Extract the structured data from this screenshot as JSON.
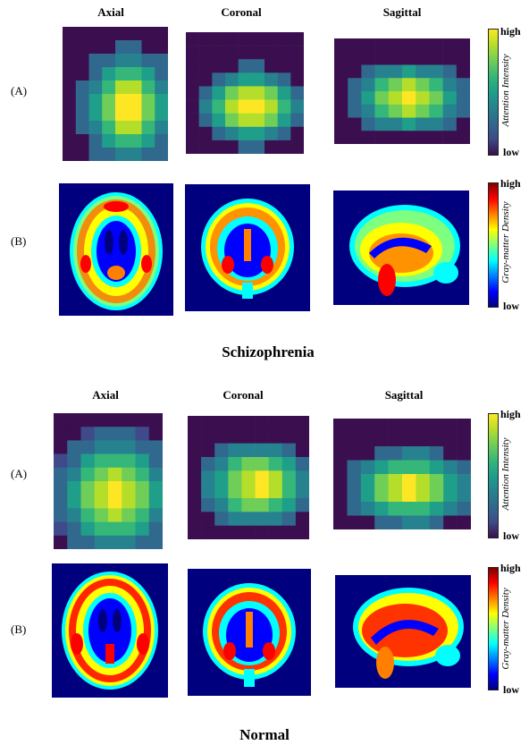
{
  "sections": [
    {
      "title": "Schizophrenia",
      "views": [
        "Axial",
        "Coronal",
        "Sagittal"
      ],
      "rows": [
        "(A)",
        "(B)"
      ],
      "attention_colorbar": {
        "high": "high",
        "low": "low",
        "title": "Attention Intensity"
      },
      "density_colorbar": {
        "high": "high",
        "low": "low",
        "title": "Gray-matter Density"
      }
    },
    {
      "title": "Normal",
      "views": [
        "Axial",
        "Coronal",
        "Sagittal"
      ],
      "rows": [
        "(A)",
        "(B)"
      ],
      "attention_colorbar": {
        "high": "high",
        "low": "low",
        "title": "Attention Intensity"
      },
      "density_colorbar": {
        "high": "high",
        "low": "low",
        "title": "Gray-matter Density"
      }
    }
  ],
  "colors": {
    "attention_map": [
      "#3b0f4f",
      "#3e4a89",
      "#31688e",
      "#26828e",
      "#1f9e89",
      "#35b779",
      "#6ece58",
      "#b5de2b",
      "#fde725"
    ],
    "density_map": [
      "#00007f",
      "#0000ff",
      "#007fff",
      "#00ffff",
      "#7fff7f",
      "#ffff00",
      "#ff7f00",
      "#ff0000"
    ]
  }
}
